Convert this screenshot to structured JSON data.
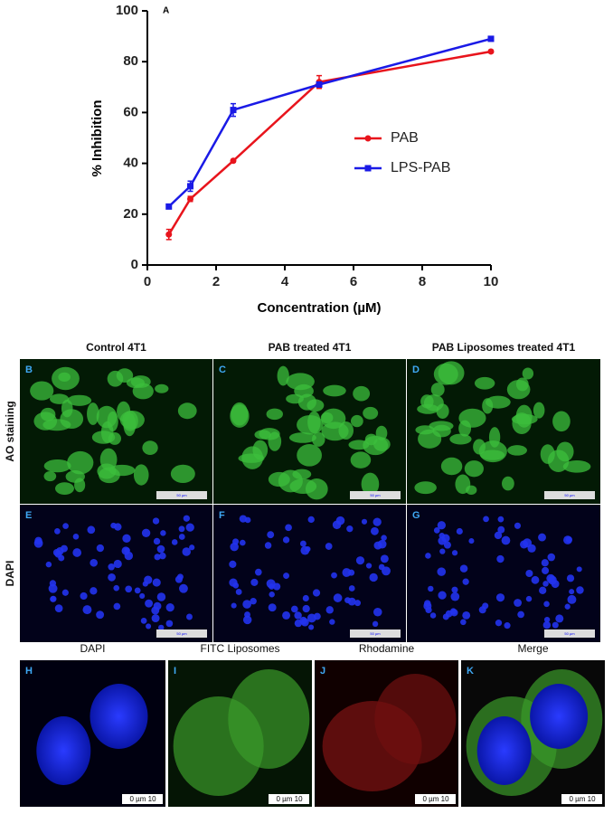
{
  "chart_data": {
    "type": "line",
    "title": "A",
    "x_label": "Concentration (µM)",
    "y_label": "% Inhibition",
    "x": [
      0.625,
      1.25,
      2.5,
      5,
      10
    ],
    "series": [
      {
        "name": "PAB",
        "color": "#e8141c",
        "marker": "circle",
        "values": [
          12,
          26,
          41,
          72,
          84
        ],
        "errors": [
          2,
          1,
          0.5,
          2.5,
          0.5
        ]
      },
      {
        "name": "LPS-PAB",
        "color": "#1a1ae6",
        "marker": "square",
        "values": [
          23,
          31,
          61,
          71,
          89
        ],
        "errors": [
          0.5,
          2,
          2.5,
          1,
          0.5
        ]
      }
    ],
    "xlim": [
      0,
      10
    ],
    "xticks": [
      0,
      2,
      4,
      6,
      8,
      10
    ],
    "ylim": [
      0,
      100
    ],
    "yticks": [
      0,
      20,
      40,
      60,
      80,
      100
    ],
    "grid": false,
    "legend": "right"
  },
  "panels": {
    "columns": [
      "Control 4T1",
      "PAB treated 4T1",
      "PAB Liposomes treated 4T1"
    ],
    "rows": [
      "AO staining",
      "DAPI"
    ],
    "grid_letters": [
      [
        "B",
        "C",
        "D"
      ],
      [
        "E",
        "F",
        "G"
      ]
    ],
    "scale_bar": "50 µm",
    "confocal_headers": [
      "DAPI",
      "FITC Liposomes",
      "Rhodamine",
      "Merge"
    ],
    "confocal_letters": [
      "H",
      "I",
      "J",
      "K"
    ],
    "confocal_scale": "0  µm  10"
  }
}
